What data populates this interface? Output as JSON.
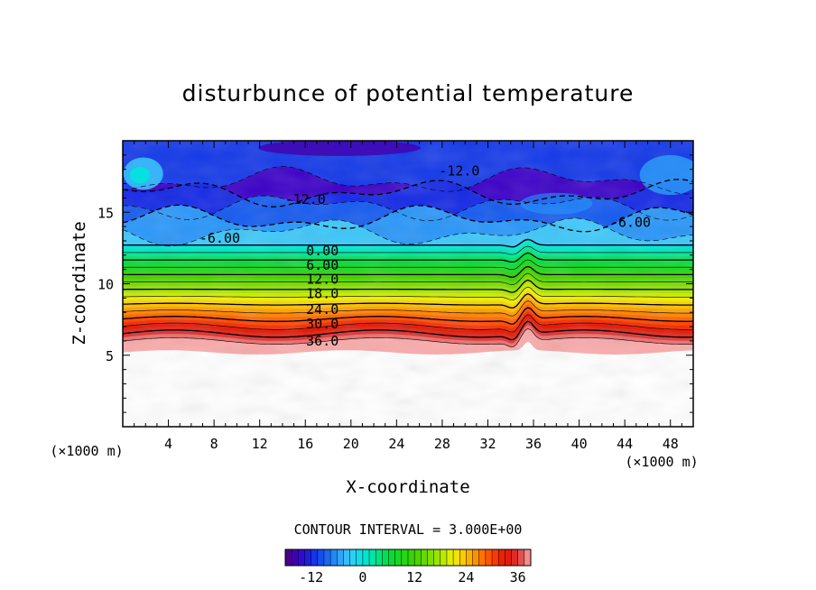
{
  "chart_data": {
    "type": "contour",
    "title": "disturbunce of potential temperature",
    "xlabel": "X-coordinate",
    "ylabel": "Z-coordinate",
    "x_unit": "(×1000 m)",
    "y_unit": "(×1000 m)",
    "xlim": [
      0,
      50
    ],
    "ylim": [
      0,
      20
    ],
    "x_ticks": [
      4,
      8,
      12,
      16,
      20,
      24,
      28,
      32,
      36,
      40,
      44,
      48
    ],
    "y_ticks": [
      5,
      10,
      15
    ],
    "contour_interval_text": "CONTOUR INTERVAL = 3.000E+00",
    "contour_interval": 3.0,
    "value_range": [
      -18,
      39
    ],
    "colorbar_ticks": [
      -12,
      0,
      12,
      24,
      36
    ],
    "contour_labels": [
      {
        "text": "-12.0",
        "x": 29.5,
        "z": 17.9
      },
      {
        "text": "-12.0",
        "x": 16.0,
        "z": 15.9
      },
      {
        "text": "-6.00",
        "x": 8.5,
        "z": 13.2
      },
      {
        "text": "-6.00",
        "x": 44.5,
        "z": 14.3
      },
      {
        "text": "0.00",
        "x": 17.5,
        "z": 12.3
      },
      {
        "text": "6.00",
        "x": 17.5,
        "z": 11.3
      },
      {
        "text": "12.0",
        "x": 17.5,
        "z": 10.3
      },
      {
        "text": "18.0",
        "x": 17.5,
        "z": 9.3
      },
      {
        "text": "24.0",
        "x": 17.5,
        "z": 8.2
      },
      {
        "text": "30.0",
        "x": 17.5,
        "z": 7.2
      },
      {
        "text": "36.0",
        "x": 17.5,
        "z": 6.0
      }
    ],
    "mountain_ridge": {
      "x": 35.5,
      "z": 6.0
    }
  }
}
